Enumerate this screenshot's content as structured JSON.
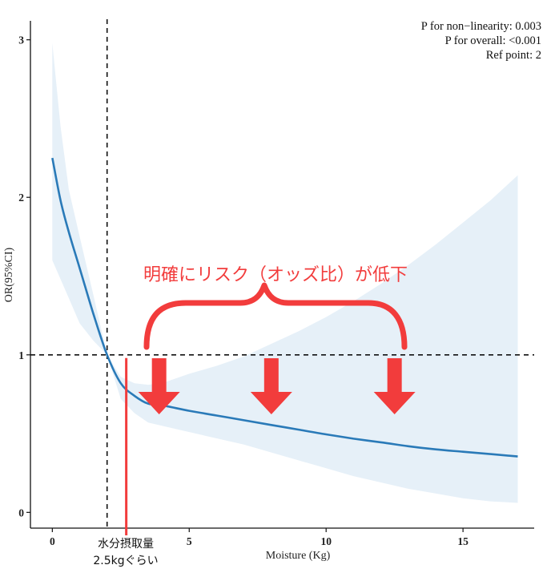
{
  "chart_data": {
    "type": "line",
    "title": "",
    "xlabel": "Moisture (Kg)",
    "ylabel": "OR(95%CI)",
    "xlim": [
      -0.8,
      17.6
    ],
    "ylim": [
      -0.1,
      3.1
    ],
    "x_ticks": [
      0,
      5,
      10,
      15
    ],
    "x_tick_labels": [
      "0",
      "5",
      "10",
      "15"
    ],
    "y_ticks": [
      0,
      1,
      2,
      3
    ],
    "y_tick_labels": [
      "0",
      "1",
      "2",
      "3"
    ],
    "grid": false,
    "stats": [
      "P for non−linearity:  0.003",
      "P for overall:  <0.001",
      "Ref point:  2"
    ],
    "reference_lines": {
      "horizontal_y": 1,
      "vertical_x": 2
    },
    "series": [
      {
        "x": [
          0,
          0.3,
          0.6,
          1.0,
          1.5,
          2.0,
          2.5,
          3.0,
          3.5,
          4,
          5,
          6,
          7,
          8,
          9,
          10,
          11,
          12,
          13,
          14,
          15,
          16,
          17
        ],
        "y": [
          2.25,
          1.98,
          1.78,
          1.55,
          1.26,
          1.0,
          0.82,
          0.74,
          0.69,
          0.68,
          0.645,
          0.615,
          0.585,
          0.555,
          0.525,
          0.495,
          0.468,
          0.445,
          0.42,
          0.4,
          0.385,
          0.37,
          0.355
        ],
        "lower": [
          1.6,
          1.48,
          1.36,
          1.2,
          1.09,
          1.0,
          0.72,
          0.63,
          0.57,
          0.55,
          0.51,
          0.47,
          0.43,
          0.38,
          0.33,
          0.28,
          0.23,
          0.19,
          0.15,
          0.12,
          0.09,
          0.07,
          0.06
        ],
        "upper": [
          2.98,
          2.45,
          2.05,
          1.75,
          1.38,
          1.0,
          0.86,
          0.82,
          0.81,
          0.82,
          0.88,
          0.93,
          0.99,
          1.07,
          1.15,
          1.24,
          1.34,
          1.45,
          1.57,
          1.7,
          1.84,
          1.98,
          2.14
        ],
        "color": "#2a7ab8",
        "band_color": "#e6f0f8"
      }
    ],
    "annotations": {
      "brace_label": "明確にリスク（オッズ比）が低下",
      "marker_label_line1": "水分摂取量",
      "marker_label_line2": "2.5kgぐらい",
      "marker_x": 2.7,
      "down_arrows_x": [
        3.9,
        8.0,
        12.5
      ],
      "color": "#f23c3c"
    }
  }
}
